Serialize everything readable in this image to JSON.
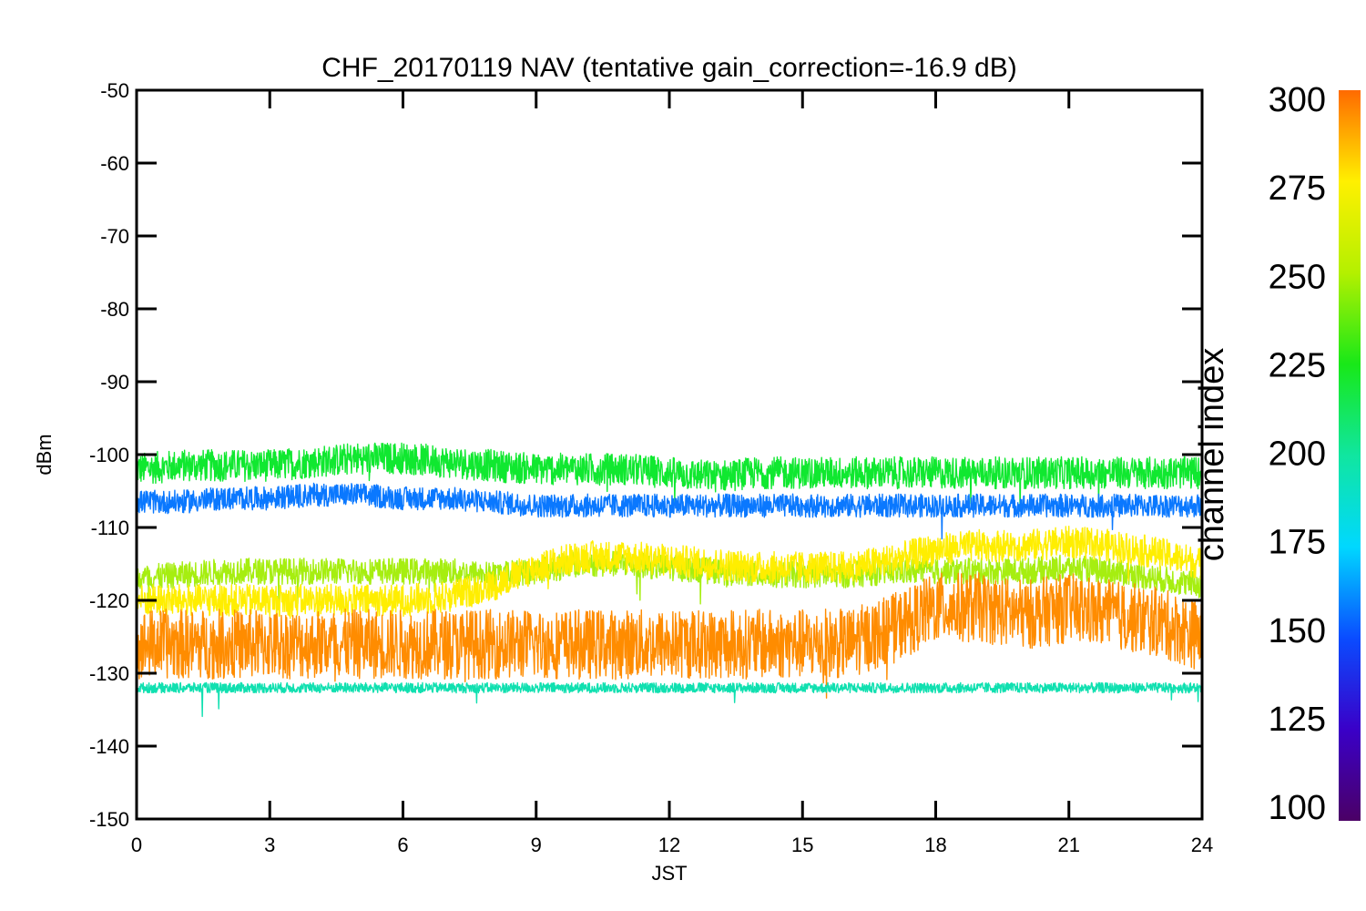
{
  "chart_data": {
    "type": "line",
    "title": "CHF_20170119 NAV (tentative gain_correction=-16.9 dB)",
    "xlabel": "JST",
    "ylabel": "dBm",
    "xlim": [
      0,
      24
    ],
    "ylim": [
      -150,
      -50
    ],
    "xticks": [
      "0",
      "3",
      "6",
      "9",
      "12",
      "15",
      "18",
      "21",
      "24"
    ],
    "yticks": [
      "-50",
      "-60",
      "-70",
      "-80",
      "-90",
      "-100",
      "-110",
      "-120",
      "-130",
      "-140",
      "-150"
    ],
    "colorbar": {
      "title": "channel index",
      "range": [
        100,
        300
      ],
      "ticks": [
        "300",
        "275",
        "250",
        "225",
        "200",
        "175",
        "150",
        "125",
        "100"
      ]
    },
    "grid": false,
    "series": [
      {
        "channel_index": 230,
        "color": "#10e830",
        "x": [
          0,
          1,
          2,
          3,
          4,
          5,
          6,
          7,
          8,
          9,
          10,
          11,
          12,
          13,
          14,
          15,
          16,
          17,
          18,
          19,
          20,
          21,
          22,
          23,
          24
        ],
        "y": [
          -102,
          -101.5,
          -101.5,
          -101.5,
          -101,
          -100.5,
          -100.5,
          -101,
          -101.5,
          -102,
          -102,
          -102,
          -102.5,
          -103,
          -102.5,
          -102.5,
          -102.5,
          -102.5,
          -102.5,
          -102.5,
          -102.5,
          -102.5,
          -102.5,
          -102.5,
          -102.5
        ]
      },
      {
        "channel_index": 155,
        "color": "#0a78ff",
        "x": [
          0,
          1,
          2,
          3,
          4,
          5,
          6,
          7,
          8,
          9,
          10,
          11,
          12,
          13,
          14,
          15,
          16,
          17,
          18,
          19,
          20,
          21,
          22,
          23,
          24
        ],
        "y": [
          -106.5,
          -106.5,
          -106,
          -106,
          -105.5,
          -105.5,
          -106,
          -106,
          -106.5,
          -107,
          -107,
          -107,
          -107,
          -107,
          -107,
          -107,
          -107,
          -107,
          -107,
          -107,
          -107,
          -107,
          -107,
          -107,
          -107
        ]
      },
      {
        "channel_index": 262,
        "color": "#a6ee10",
        "x": [
          0,
          1,
          2,
          3,
          4,
          5,
          6,
          7,
          8,
          9,
          10,
          11,
          12,
          13,
          14,
          15,
          16,
          17,
          18,
          19,
          20,
          21,
          22,
          23,
          24
        ],
        "y": [
          -117,
          -116.5,
          -116,
          -116,
          -116,
          -116,
          -116,
          -116,
          -116.5,
          -116,
          -115,
          -115,
          -115.5,
          -116,
          -116.5,
          -116.5,
          -116.5,
          -116,
          -116,
          -116,
          -116,
          -115.5,
          -116,
          -117,
          -118
        ]
      },
      {
        "channel_index": 275,
        "color": "#ffee00",
        "x": [
          0,
          1,
          2,
          3,
          4,
          5,
          6,
          7,
          8,
          9,
          10,
          11,
          12,
          13,
          14,
          15,
          16,
          17,
          18,
          19,
          20,
          21,
          22,
          23,
          24
        ],
        "y": [
          -120,
          -120,
          -120,
          -120,
          -120,
          -120,
          -120,
          -119.5,
          -118,
          -115.5,
          -114,
          -114,
          -114.5,
          -115,
          -115.5,
          -115.5,
          -115.5,
          -114.5,
          -113,
          -112.5,
          -112.5,
          -112,
          -112.5,
          -113.5,
          -115
        ]
      },
      {
        "channel_index": 292,
        "color": "#ff8c00",
        "x": [
          0,
          1,
          2,
          3,
          4,
          5,
          6,
          7,
          8,
          9,
          10,
          11,
          12,
          13,
          14,
          15,
          16,
          17,
          18,
          19,
          20,
          21,
          22,
          23,
          24
        ],
        "y": [
          -126,
          -126,
          -126,
          -126,
          -126,
          -126,
          -126,
          -126,
          -126,
          -126,
          -126,
          -126,
          -126,
          -126,
          -126,
          -126,
          -126,
          -124,
          -121,
          -121,
          -122,
          -121,
          -122,
          -123,
          -125
        ]
      },
      {
        "channel_index": 190,
        "color": "#10e0b0",
        "x": [
          0,
          2,
          4,
          6,
          8,
          10,
          12,
          14,
          16,
          18,
          20,
          22,
          24
        ],
        "y": [
          -132,
          -132,
          -132,
          -132,
          -132,
          -132,
          -132,
          -132,
          -132,
          -132,
          -132,
          -132,
          -132
        ]
      }
    ]
  }
}
